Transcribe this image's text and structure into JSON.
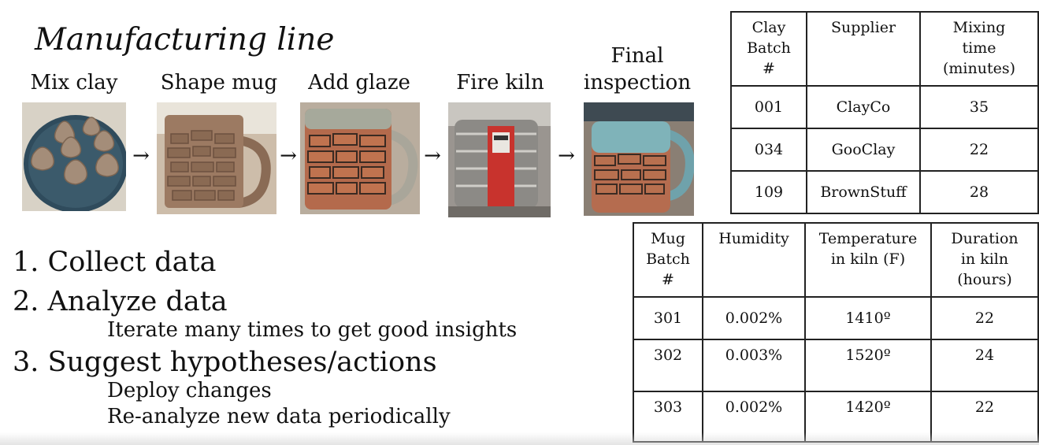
{
  "title": "Manufacturing line",
  "process_steps": [
    {
      "label": "Mix clay",
      "image": "clay-balls-on-plate"
    },
    {
      "label": "Shape mug",
      "image": "unglazed-brick-mug"
    },
    {
      "label": "Add glaze",
      "image": "glazed-mug"
    },
    {
      "label": "Fire kiln",
      "image": "electric-kiln"
    },
    {
      "label_line1": "Final",
      "label_line2": "inspection",
      "image": "finished-mug"
    }
  ],
  "arrows": [
    "→",
    "→",
    "→",
    "→"
  ],
  "clay_table": {
    "headers": [
      [
        "Clay",
        "Batch",
        "#"
      ],
      [
        "Supplier"
      ],
      [
        "Mixing",
        "time",
        "(minutes)"
      ]
    ],
    "rows": [
      [
        "001",
        "ClayCo",
        "35"
      ],
      [
        "034",
        "GooClay",
        "22"
      ],
      [
        "109",
        "BrownStuff",
        "28"
      ]
    ]
  },
  "mug_table": {
    "headers": [
      [
        "Mug",
        "Batch",
        "#"
      ],
      [
        "Humidity"
      ],
      [
        "Temperature",
        "in kiln (F)"
      ],
      [
        "Duration",
        "in kiln",
        "(hours)"
      ]
    ],
    "rows": [
      [
        "301",
        "0.002%",
        "1410º",
        "22"
      ],
      [
        "302",
        "0.003%",
        "1520º",
        "24"
      ],
      [
        "303",
        "0.002%",
        "1420º",
        "22"
      ]
    ]
  },
  "steps": [
    {
      "label": "1.  Collect data",
      "subs": []
    },
    {
      "label": "2.  Analyze data",
      "subs": [
        "Iterate many times to get good insights"
      ]
    },
    {
      "label": "3.  Suggest hypotheses/actions",
      "subs": [
        "Deploy changes",
        "Re-analyze new data periodically"
      ]
    }
  ]
}
